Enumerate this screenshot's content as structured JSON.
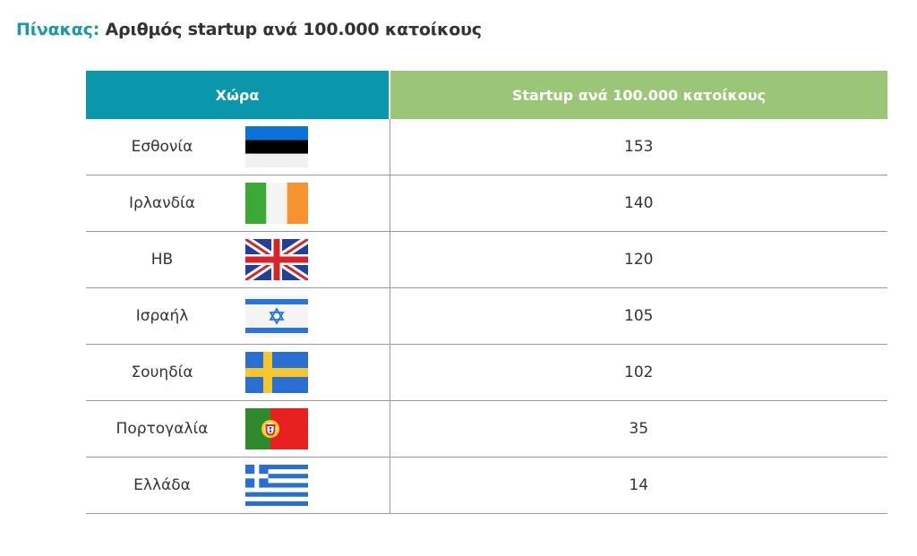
{
  "title": {
    "lead": "Πίνακας:",
    "rest": "Αριθμός startup ανά 100.000 κατοίκους"
  },
  "table": {
    "headers": {
      "country": "Χώρα",
      "value": "Startup ανά 100.000 κατοίκους"
    },
    "rows": [
      {
        "country": "Εσθονία",
        "flag": "estonia-flag-icon",
        "value": "153"
      },
      {
        "country": "Ιρλανδία",
        "flag": "ireland-flag-icon",
        "value": "140"
      },
      {
        "country": "ΗΒ",
        "flag": "uk-flag-icon",
        "value": "120"
      },
      {
        "country": "Ισραήλ",
        "flag": "israel-flag-icon",
        "value": "105"
      },
      {
        "country": "Σουηδία",
        "flag": "sweden-flag-icon",
        "value": "102"
      },
      {
        "country": "Πορτογαλία",
        "flag": "portugal-flag-icon",
        "value": "35"
      },
      {
        "country": "Ελλάδα",
        "flag": "greece-flag-icon",
        "value": "14"
      }
    ]
  },
  "colors": {
    "title_accent": "#1a9aa8",
    "header_country_bg": "#0a97ab",
    "header_value_bg": "#9bc577",
    "rule": "#9a9a9a"
  }
}
